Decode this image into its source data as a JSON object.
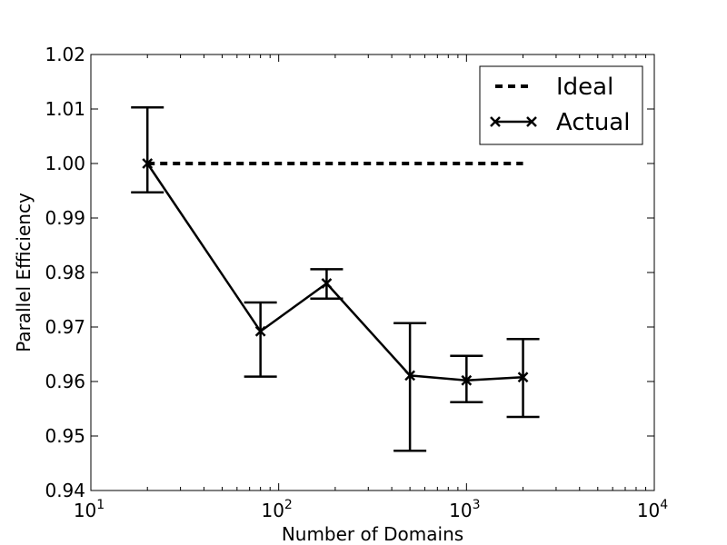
{
  "chart_data": {
    "type": "line",
    "title": "",
    "xlabel": "Number of Domains",
    "ylabel": "Parallel Efficiency",
    "x_scale": "log",
    "xlim": [
      10,
      10000
    ],
    "ylim": [
      0.94,
      1.02
    ],
    "x_ticks": [
      {
        "value": 10,
        "base": "10",
        "exp": "1"
      },
      {
        "value": 100,
        "base": "10",
        "exp": "2"
      },
      {
        "value": 1000,
        "base": "10",
        "exp": "3"
      },
      {
        "value": 10000,
        "base": "10",
        "exp": "4"
      }
    ],
    "y_ticks": [
      {
        "value": 0.94,
        "label": "0.94"
      },
      {
        "value": 0.95,
        "label": "0.95"
      },
      {
        "value": 0.96,
        "label": "0.96"
      },
      {
        "value": 0.97,
        "label": "0.97"
      },
      {
        "value": 0.98,
        "label": "0.98"
      },
      {
        "value": 0.99,
        "label": "0.99"
      },
      {
        "value": 1.0,
        "label": "1.00"
      },
      {
        "value": 1.01,
        "label": "1.01"
      },
      {
        "value": 1.02,
        "label": "1.02"
      }
    ],
    "grid": false,
    "legend_position": "top-right",
    "series": [
      {
        "name": "Ideal",
        "style": "dashed",
        "color": "#000000",
        "x": [
          20,
          2000
        ],
        "y": [
          1.0,
          1.0
        ]
      },
      {
        "name": "Actual",
        "style": "solid",
        "marker": "x",
        "color": "#000000",
        "x": [
          20,
          80,
          180,
          500,
          1000,
          2000
        ],
        "y": [
          1.0,
          0.9692,
          0.978,
          0.9611,
          0.9602,
          0.9608
        ],
        "err_low": [
          0.9947,
          0.9609,
          0.9752,
          0.9473,
          0.9562,
          0.9535
        ],
        "err_high": [
          1.0103,
          0.9745,
          0.9806,
          0.9707,
          0.9647,
          0.9678
        ]
      }
    ]
  }
}
